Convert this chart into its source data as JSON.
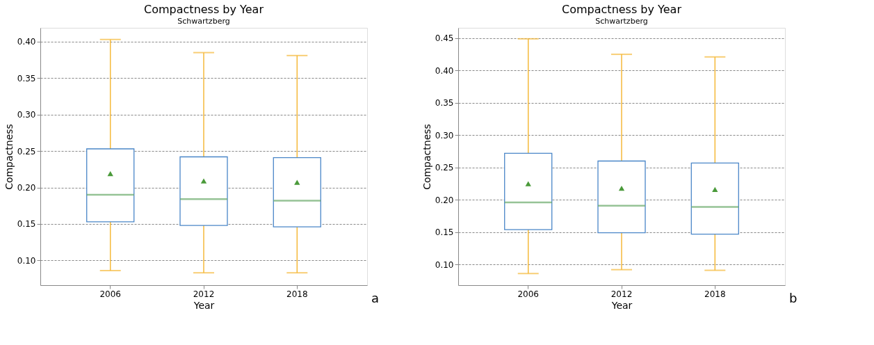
{
  "chart_data": [
    {
      "type": "box",
      "title": "Compactness by Year",
      "subtitle": "Schwartzberg",
      "xlabel": "Year",
      "ylabel": "Compactness",
      "categories": [
        "2006",
        "2012",
        "2018"
      ],
      "series": [
        {
          "color": "#4a86c8",
          "boxes": [
            {
              "low": 0.086,
              "q1": 0.153,
              "median": 0.19,
              "q3": 0.253,
              "high": 0.403,
              "mean": 0.219
            },
            {
              "low": 0.083,
              "q1": 0.148,
              "median": 0.184,
              "q3": 0.242,
              "high": 0.385,
              "mean": 0.209
            },
            {
              "low": 0.083,
              "q1": 0.146,
              "median": 0.182,
              "q3": 0.241,
              "high": 0.381,
              "mean": 0.207
            }
          ]
        }
      ],
      "ylim": [
        0.066,
        0.419
      ],
      "yticks": [
        {
          "value": 0.1,
          "label": "0.10"
        },
        {
          "value": 0.15,
          "label": "0.15"
        },
        {
          "value": 0.2,
          "label": "0.20"
        },
        {
          "value": 0.25,
          "label": "0.25"
        },
        {
          "value": 0.3,
          "label": "0.30"
        },
        {
          "value": 0.35,
          "label": "0.35"
        },
        {
          "value": 0.4,
          "label": "0.40"
        }
      ],
      "grid": "y",
      "annotations": [
        "a"
      ]
    },
    {
      "type": "box",
      "title": "Compactness by Year",
      "subtitle": "Schwartzberg",
      "xlabel": "Year",
      "ylabel": "Compactness",
      "categories": [
        "2006",
        "2012",
        "2018"
      ],
      "series": [
        {
          "color": "#4a86c8",
          "boxes": [
            {
              "low": 0.086,
              "q1": 0.154,
              "median": 0.196,
              "q3": 0.272,
              "high": 0.449,
              "mean": 0.225
            },
            {
              "low": 0.092,
              "q1": 0.149,
              "median": 0.191,
              "q3": 0.26,
              "high": 0.425,
              "mean": 0.218
            },
            {
              "low": 0.091,
              "q1": 0.147,
              "median": 0.189,
              "q3": 0.257,
              "high": 0.421,
              "mean": 0.216
            }
          ]
        }
      ],
      "ylim": [
        0.068,
        0.466
      ],
      "yticks": [
        {
          "value": 0.1,
          "label": "0.10"
        },
        {
          "value": 0.15,
          "label": "0.15"
        },
        {
          "value": 0.2,
          "label": "0.20"
        },
        {
          "value": 0.25,
          "label": "0.25"
        },
        {
          "value": 0.3,
          "label": "0.30"
        },
        {
          "value": 0.35,
          "label": "0.35"
        },
        {
          "value": 0.4,
          "label": "0.40"
        },
        {
          "value": 0.45,
          "label": "0.45"
        }
      ],
      "grid": "y",
      "annotations": [
        "b"
      ]
    }
  ]
}
